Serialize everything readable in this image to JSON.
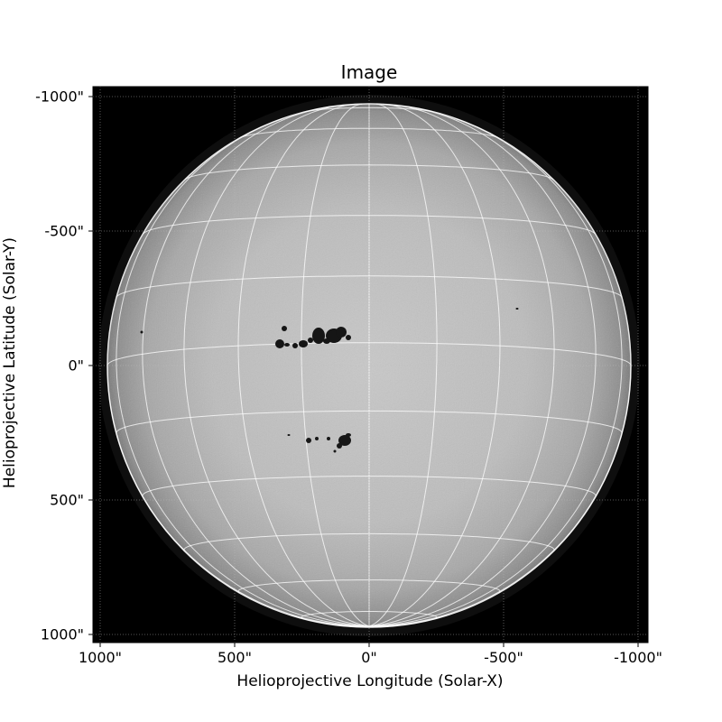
{
  "figure": {
    "title": "Image",
    "xlabel": "Helioprojective Longitude (Solar-X)",
    "ylabel": "Helioprojective Latitude (Solar-Y)",
    "x_ticks": [
      "1000\"",
      "500\"",
      "0\"",
      "-500\"",
      "-1000\""
    ],
    "y_ticks": [
      "-1000\"",
      "-500\"",
      "0\"",
      "500\"",
      "1000\""
    ],
    "x_range_arcsec": [
      1030,
      -1030
    ],
    "y_range_arcsec": [
      -1030,
      1030
    ],
    "colors": {
      "background": "#000000",
      "disk_center": "#c6c6c6",
      "disk_limb": "#8a8a8a",
      "grid_lines": "#ffffff",
      "sunspot": "#141414"
    },
    "image_description_icon": "sun-disk-image"
  }
}
